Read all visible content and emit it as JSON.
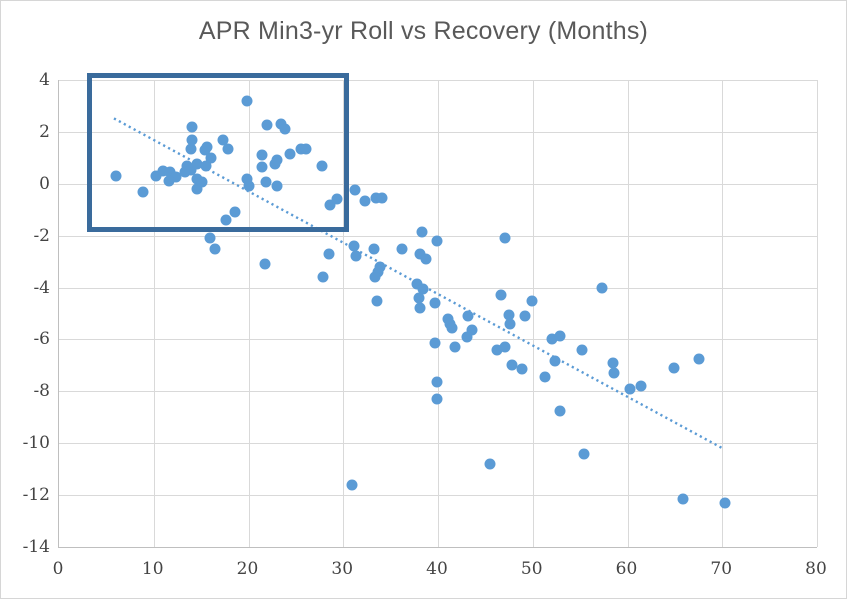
{
  "chart_data": {
    "type": "scatter",
    "title": "APR Min3-yr Roll vs Recovery (Months)",
    "xlabel": "",
    "ylabel": "",
    "xlim": [
      0,
      80
    ],
    "ylim": [
      -14,
      4
    ],
    "x_ticks": [
      0,
      10,
      20,
      30,
      40,
      50,
      60,
      70,
      80
    ],
    "y_ticks": [
      4,
      2,
      0,
      -2,
      -4,
      -6,
      -8,
      -10,
      -12,
      -14
    ],
    "grid": true,
    "legend": "none",
    "series": [
      {
        "name": "APR Min3-yr Roll vs Recovery",
        "marker": "circle",
        "points": [
          [
            6.0,
            0.3
          ],
          [
            8.9,
            -0.3
          ],
          [
            10.2,
            0.3
          ],
          [
            11.0,
            0.5
          ],
          [
            11.7,
            0.45
          ],
          [
            12.3,
            0.25
          ],
          [
            11.6,
            0.1
          ],
          [
            13.3,
            0.45
          ],
          [
            13.5,
            0.7
          ],
          [
            13.9,
            1.35
          ],
          [
            13.9,
            0.55
          ],
          [
            14.0,
            2.2
          ],
          [
            14.0,
            1.7
          ],
          [
            14.6,
            0.75
          ],
          [
            14.6,
            0.2
          ],
          [
            14.6,
            -0.2
          ],
          [
            15.1,
            0.05
          ],
          [
            15.4,
            1.3
          ],
          [
            15.5,
            0.7
          ],
          [
            15.6,
            1.4
          ],
          [
            16.0,
            1.0
          ],
          [
            17.3,
            1.7
          ],
          [
            17.8,
            1.35
          ],
          [
            19.8,
            3.2
          ],
          [
            19.8,
            0.2
          ],
          [
            20.0,
            -0.1
          ],
          [
            21.4,
            1.1
          ],
          [
            21.4,
            0.65
          ],
          [
            21.8,
            0.05
          ],
          [
            22.0,
            2.25
          ],
          [
            22.8,
            0.75
          ],
          [
            23.0,
            0.9
          ],
          [
            23.0,
            -0.1
          ],
          [
            23.4,
            2.3
          ],
          [
            23.9,
            2.1
          ],
          [
            24.4,
            1.15
          ],
          [
            25.5,
            1.35
          ],
          [
            26.1,
            1.35
          ],
          [
            27.8,
            0.7
          ],
          [
            28.6,
            -0.8
          ],
          [
            29.3,
            -0.6
          ],
          [
            31.2,
            -0.25
          ],
          [
            32.3,
            -0.65
          ],
          [
            33.5,
            -0.55
          ],
          [
            34.1,
            -0.55
          ],
          [
            17.6,
            -1.4
          ],
          [
            18.6,
            -1.1
          ],
          [
            15.9,
            -2.1
          ],
          [
            16.5,
            -2.5
          ],
          [
            21.7,
            -3.1
          ],
          [
            28.5,
            -2.7
          ],
          [
            27.9,
            -3.6
          ],
          [
            31.1,
            -2.4
          ],
          [
            31.3,
            -2.8
          ],
          [
            33.2,
            -2.5
          ],
          [
            36.2,
            -2.5
          ],
          [
            38.3,
            -1.85
          ],
          [
            39.9,
            -2.2
          ],
          [
            47.1,
            -2.1
          ],
          [
            33.9,
            -3.2
          ],
          [
            33.7,
            -3.4
          ],
          [
            33.4,
            -3.6
          ],
          [
            37.8,
            -3.85
          ],
          [
            38.4,
            -4.05
          ],
          [
            33.6,
            -4.5
          ],
          [
            38.0,
            -4.4
          ],
          [
            38.1,
            -4.8
          ],
          [
            39.7,
            -4.6
          ],
          [
            38.1,
            -2.7
          ],
          [
            38.7,
            -2.9
          ],
          [
            46.6,
            -4.3
          ],
          [
            49.9,
            -4.5
          ],
          [
            57.3,
            -4.0
          ],
          [
            41.1,
            -5.2
          ],
          [
            41.3,
            -5.4
          ],
          [
            41.5,
            -5.55
          ],
          [
            43.2,
            -5.1
          ],
          [
            43.6,
            -5.65
          ],
          [
            43.1,
            -5.9
          ],
          [
            47.5,
            -5.05
          ],
          [
            47.6,
            -5.4
          ],
          [
            49.2,
            -5.1
          ],
          [
            39.7,
            -6.15
          ],
          [
            41.8,
            -6.3
          ],
          [
            46.2,
            -6.4
          ],
          [
            47.1,
            -6.3
          ],
          [
            47.8,
            -7.0
          ],
          [
            48.9,
            -7.15
          ],
          [
            52.0,
            -6.0
          ],
          [
            52.9,
            -5.85
          ],
          [
            52.4,
            -6.85
          ],
          [
            55.2,
            -6.4
          ],
          [
            58.5,
            -6.9
          ],
          [
            58.6,
            -7.3
          ],
          [
            60.3,
            -7.9
          ],
          [
            61.4,
            -7.8
          ],
          [
            64.9,
            -7.1
          ],
          [
            67.5,
            -6.75
          ],
          [
            39.9,
            -7.65
          ],
          [
            39.9,
            -8.3
          ],
          [
            51.3,
            -7.45
          ],
          [
            52.9,
            -8.75
          ],
          [
            55.4,
            -10.4
          ],
          [
            45.5,
            -10.8
          ],
          [
            30.9,
            -11.6
          ],
          [
            65.9,
            -12.15
          ],
          [
            70.3,
            -12.3
          ]
        ]
      }
    ],
    "trendline": {
      "style": "dotted",
      "x1": 5.8,
      "y1": 2.52,
      "x2": 70.0,
      "y2": -10.19
    },
    "annotation_box": {
      "x1": 3.0,
      "y1": -1.86,
      "x2": 30.6,
      "y2": 4.27,
      "border_width": 5
    },
    "colors": {
      "marker": "#5B9BD5",
      "trendline": "#5B9BD5",
      "annotation_border": "#3A6B9C",
      "gridline": "#D9D9D9",
      "axis_line": "#BFBFBF",
      "title_text": "#595959",
      "tick_text": "#444444",
      "background": "#FFFFFF"
    }
  }
}
